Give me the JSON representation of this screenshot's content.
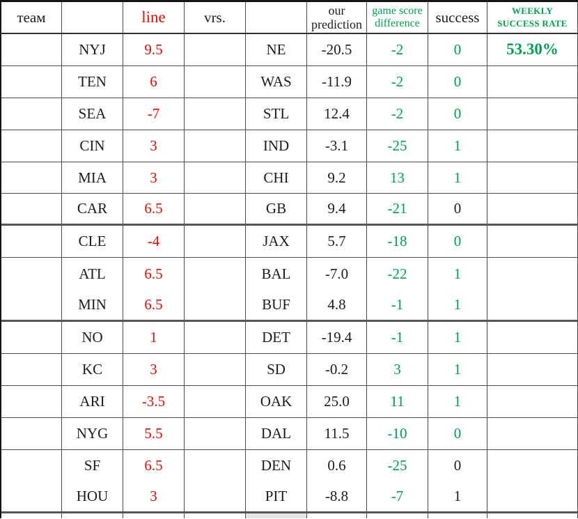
{
  "colors": {
    "red": "#e30b00",
    "green": "#00a14e",
    "text_black": "#1c1c1c",
    "selected_cell_gray": "#e4e4e4"
  },
  "header": {
    "team": "тeaм",
    "team_name": "",
    "line": "line",
    "vrs": "vrs.",
    "opponent": "",
    "prediction_line1": "our",
    "prediction_line2": "prediction",
    "difference_line1": "game score",
    "difference_line2": "difference",
    "success": "success",
    "weekly_line1": "WEEKLY",
    "weekly_line2": "SUCCESS RATE"
  },
  "rows": [
    {
      "team": "NYJ",
      "line": "9.5",
      "opponent": "NE",
      "prediction": "-20.5",
      "difference": "-2",
      "success": "0",
      "success_style": "color:#00a14e",
      "weekly": "53.30%"
    },
    {
      "team": "TEN",
      "line": "6",
      "opponent": "WAS",
      "prediction": "-11.9",
      "difference": "-2",
      "success": "0",
      "success_style": "color:#00a14e",
      "weekly": ""
    },
    {
      "team": "SEA",
      "line": "-7",
      "opponent": "STL",
      "prediction": "12.4",
      "difference": "-2",
      "success": "0",
      "success_style": "color:#00a14e",
      "weekly": ""
    },
    {
      "team": "CIN",
      "line": "3",
      "opponent": "IND",
      "prediction": "-3.1",
      "difference": "-25",
      "success": "1",
      "success_style": "color:#00a14e",
      "weekly": ""
    },
    {
      "team": "MIA",
      "line": "3",
      "opponent": "CHI",
      "prediction": "9.2",
      "difference": "13",
      "success": "1",
      "success_style": "color:#00a14e",
      "weekly": ""
    },
    {
      "team": "CAR",
      "line": "6.5",
      "opponent": "GB",
      "prediction": "9.4",
      "difference": "-21",
      "success": "0",
      "success_style": "color:#1c1c1c",
      "weekly": ""
    },
    {
      "team": "CLE",
      "line": "-4",
      "opponent": "JAX",
      "prediction": "5.7",
      "difference": "-18",
      "success": "0",
      "success_style": "color:#00a14e",
      "weekly": ""
    },
    {
      "team": "ATL",
      "line": "6.5",
      "opponent": "BAL",
      "prediction": "-7.0",
      "difference": "-22",
      "success": "1",
      "success_style": "color:#00a14e",
      "weekly": ""
    },
    {
      "team": "MIN",
      "line": "6.5",
      "opponent": "BUF",
      "prediction": "4.8",
      "difference": "-1",
      "success": "1",
      "success_style": "color:#00a14e",
      "weekly": ""
    },
    {
      "team": "NO",
      "line": "1",
      "opponent": "DET",
      "prediction": "-19.4",
      "difference": "-1",
      "success": "1",
      "success_style": "color:#00a14e",
      "weekly": ""
    },
    {
      "team": "KC",
      "line": "3",
      "opponent": "SD",
      "prediction": "-0.2",
      "difference": "3",
      "success": "1",
      "success_style": "color:#00a14e",
      "weekly": ""
    },
    {
      "team": "ARI",
      "line": "-3.5",
      "opponent": "OAK",
      "prediction": "25.0",
      "difference": "11",
      "success": "1",
      "success_style": "color:#00a14e",
      "weekly": ""
    },
    {
      "team": "NYG",
      "line": "5.5",
      "opponent": "DAL",
      "prediction": "11.5",
      "difference": "-10",
      "success": "0",
      "success_style": "color:#00a14e",
      "weekly": ""
    },
    {
      "team": "SF",
      "line": "6.5",
      "opponent": "DEN",
      "prediction": "0.6",
      "difference": "-25",
      "success": "0",
      "success_style": "color:#1c1c1c",
      "weekly": ""
    },
    {
      "team": "HOU",
      "line": "3",
      "opponent": "PIT",
      "prediction": "-8.8",
      "difference": "-7",
      "success": "1",
      "success_style": "color:#1c1c1c",
      "weekly": ""
    }
  ]
}
